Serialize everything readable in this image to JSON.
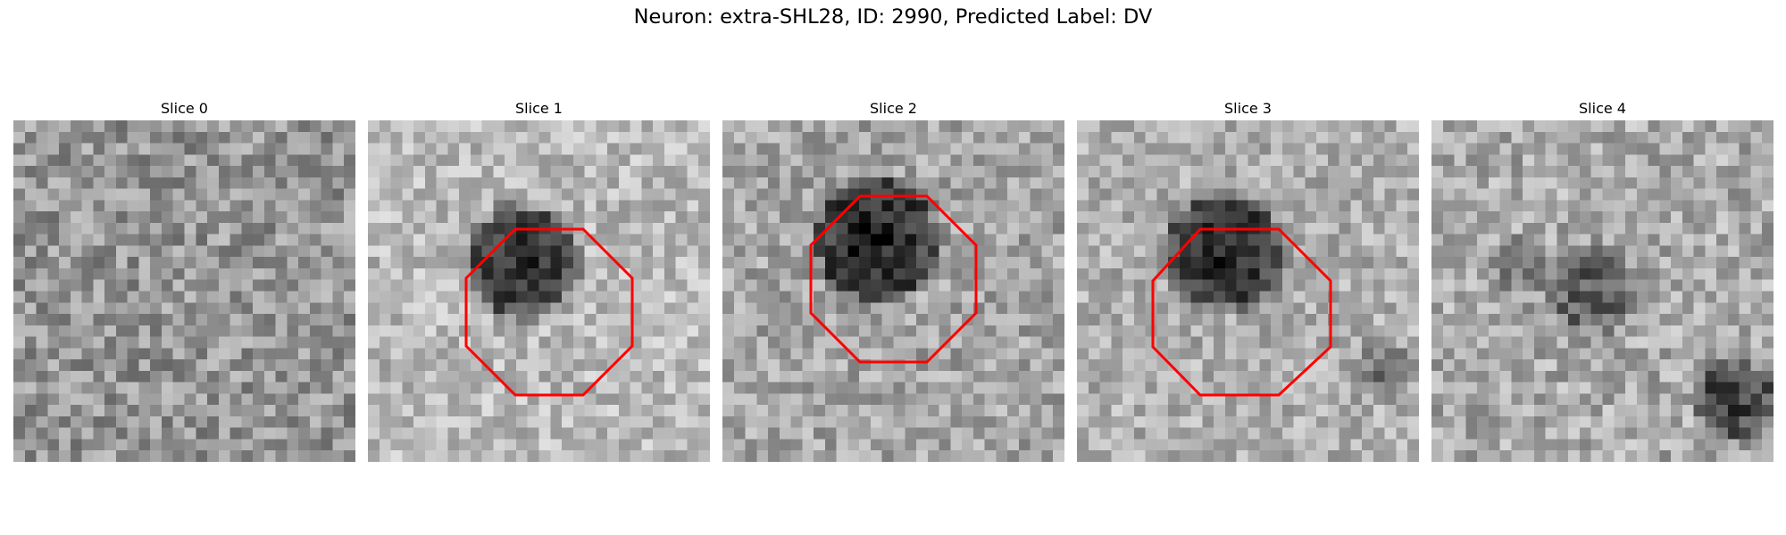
{
  "figure": {
    "title": "Neuron: extra-SHL28, ID: 2990, Predicted Label: DV"
  },
  "colors": {
    "roi_outline": "#ff0000",
    "background": "#ffffff"
  },
  "slices": [
    {
      "title": "Slice 0",
      "roi_visible": false
    },
    {
      "title": "Slice 1",
      "roi_visible": true
    },
    {
      "title": "Slice 2",
      "roi_visible": true
    },
    {
      "title": "Slice 3",
      "roi_visible": true
    },
    {
      "title": "Slice 4",
      "roi_visible": false
    }
  ]
}
